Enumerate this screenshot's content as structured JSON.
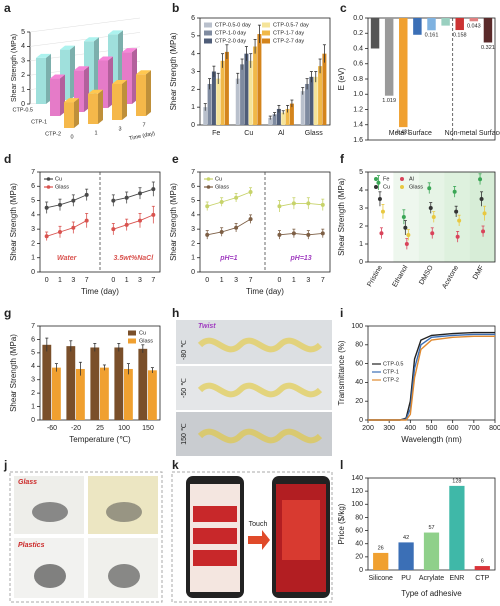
{
  "panel_labels": [
    "a",
    "b",
    "c",
    "d",
    "e",
    "f",
    "g",
    "h",
    "i",
    "j",
    "k",
    "l"
  ],
  "chart_data": [
    {
      "type": "bar3d",
      "ylabel": "Shear Strength (MPa)",
      "xlabel": "Time (day)",
      "categories": [
        "0",
        "1",
        "3",
        "7"
      ],
      "series": [
        {
          "name": "CTP-0.5",
          "color": "#9fe0dc",
          "values": [
            3.2,
            3.5,
            3.8,
            4.0
          ]
        },
        {
          "name": "CTP-1",
          "color": "#e57bc8",
          "values": [
            2.6,
            2.9,
            3.3,
            3.6
          ]
        },
        {
          "name": "CTP-2",
          "color": "#f5b84a",
          "values": [
            1.8,
            2.1,
            2.5,
            2.9
          ]
        }
      ],
      "ylim": [
        0,
        5
      ],
      "yticks": [
        0,
        1,
        2,
        3,
        4,
        5
      ]
    },
    {
      "type": "bar",
      "ylabel": "Shear Strength (MPa)",
      "categories": [
        "Fe",
        "Cu",
        "Al",
        "Glass"
      ],
      "series": [
        {
          "name": "CTP-0.5-0 day",
          "color": "#b9c0cc",
          "values": [
            1.0,
            2.6,
            0.4,
            1.9
          ],
          "errors": [
            0.2,
            0.3,
            0.1,
            0.2
          ]
        },
        {
          "name": "CTP-1-0 day",
          "color": "#7f8ba0",
          "values": [
            2.3,
            3.4,
            0.6,
            2.3
          ],
          "errors": [
            0.3,
            0.3,
            0.1,
            0.3
          ]
        },
        {
          "name": "CTP-2-0 day",
          "color": "#4f5d78",
          "values": [
            3.0,
            4.0,
            0.9,
            2.7
          ],
          "errors": [
            0.3,
            0.4,
            0.2,
            0.3
          ]
        },
        {
          "name": "CTP-0.5-7 day",
          "color": "#f5e49a",
          "values": [
            2.6,
            3.6,
            0.7,
            2.7
          ],
          "errors": [
            0.3,
            0.4,
            0.1,
            0.3
          ]
        },
        {
          "name": "CTP-1-7 day",
          "color": "#f0b848",
          "values": [
            3.6,
            4.4,
            0.9,
            3.3
          ],
          "errors": [
            0.4,
            0.4,
            0.2,
            0.4
          ]
        },
        {
          "name": "CTP-2-7 day",
          "color": "#d4841c",
          "values": [
            4.1,
            5.1,
            1.2,
            4.0
          ],
          "errors": [
            0.4,
            0.5,
            0.2,
            0.5
          ]
        }
      ],
      "ylim": [
        0,
        6
      ],
      "yticks": [
        0,
        1,
        2,
        3,
        4,
        5,
        6
      ],
      "legend": "upper left",
      "legend_columns": 2
    },
    {
      "type": "bar",
      "ylabel": "E (eV)",
      "values": [
        0.4,
        1.019,
        1.431,
        0.22,
        0.161,
        0.1,
        0.158,
        0.043,
        0.321
      ],
      "show_value": [
        false,
        true,
        true,
        false,
        true,
        false,
        true,
        true,
        true
      ],
      "colors": [
        "#555555",
        "#9a9a9a",
        "#f0a030",
        "#3b6fb6",
        "#7fb2e0",
        "#9ad0c0",
        "#cc3333",
        "#e08080",
        "#5a2a2a"
      ],
      "groups": [
        {
          "label": "Metal Surface",
          "size": 6
        },
        {
          "label": "Non-metal Surface",
          "size": 3
        }
      ],
      "ylim": [
        1.6,
        0
      ],
      "yticks": [
        {
          "value": 0,
          "label": "0.0"
        },
        0.2,
        0.4,
        0.6,
        0.8,
        {
          "value": 1,
          "label": "1.0"
        },
        1.2,
        1.4,
        1.6
      ]
    },
    {
      "type": "line",
      "markers": true,
      "xlabel": "Time (day)",
      "ylabel": "Shear Strength (MPa)",
      "categories": [
        "0",
        "1",
        "3",
        "7",
        null,
        "0",
        "1",
        "3",
        "7"
      ],
      "series": [
        {
          "name": "Cu",
          "color": "#4a4a4a",
          "values": [
            4.5,
            4.7,
            5.0,
            5.4,
            null,
            5.0,
            5.2,
            5.5,
            5.8
          ],
          "errors": [
            0.4,
            0.4,
            0.4,
            0.4,
            null,
            0.4,
            0.4,
            0.4,
            0.5
          ]
        },
        {
          "name": "Glass",
          "color": "#d9534f",
          "values": [
            2.5,
            2.8,
            3.1,
            3.6,
            null,
            3.0,
            3.3,
            3.6,
            4.0
          ],
          "errors": [
            0.3,
            0.4,
            0.4,
            0.5,
            null,
            0.4,
            0.4,
            0.5,
            0.6
          ]
        }
      ],
      "ylim": [
        0,
        7
      ],
      "yticks": [
        0,
        1,
        2,
        3,
        4,
        5,
        6,
        7
      ],
      "legend": "upper left",
      "annotations": [
        "Water",
        "3.5wt%NaCl"
      ],
      "annotation_color": "#d9534f"
    },
    {
      "type": "line",
      "markers": true,
      "xlabel": "Time (day)",
      "ylabel": "Shear Strength (MPa)",
      "categories": [
        "0",
        "1",
        "3",
        "7",
        null,
        "0",
        "1",
        "3",
        "7"
      ],
      "series": [
        {
          "name": "Cu",
          "color": "#c7d36a",
          "values": [
            4.6,
            4.9,
            5.2,
            5.6,
            null,
            4.6,
            4.8,
            4.8,
            4.7
          ],
          "errors": [
            0.3,
            0.3,
            0.3,
            0.3,
            null,
            0.4,
            0.4,
            0.4,
            0.4
          ]
        },
        {
          "name": "Glass",
          "color": "#7d5f45",
          "values": [
            2.6,
            2.8,
            3.1,
            3.7,
            null,
            2.6,
            2.7,
            2.6,
            2.7
          ],
          "errors": [
            0.3,
            0.3,
            0.3,
            0.3,
            null,
            0.3,
            0.3,
            0.3,
            0.3
          ]
        }
      ],
      "ylim": [
        0,
        7
      ],
      "yticks": [
        0,
        1,
        2,
        3,
        4,
        5,
        6,
        7
      ],
      "legend": "upper left",
      "annotations": [
        "pH=1",
        "pH=13"
      ],
      "annotation_color": "#a03cc0"
    },
    {
      "type": "scatter",
      "ylabel": "Shear Strength (MPa)",
      "categories": [
        "Pristine",
        "Ethanol",
        "DMSO",
        "Acetone",
        "DMF"
      ],
      "series": [
        {
          "name": "Fe",
          "color": "#3aa655",
          "values": [
            4.4,
            2.5,
            4.1,
            3.9,
            4.6
          ],
          "errors": [
            0.4,
            0.4,
            0.3,
            0.3,
            0.3
          ]
        },
        {
          "name": "Cu",
          "color": "#333333",
          "values": [
            3.5,
            1.9,
            3.0,
            2.8,
            3.5
          ],
          "errors": [
            0.4,
            0.4,
            0.3,
            0.3,
            0.4
          ]
        },
        {
          "name": "Al",
          "color": "#d9435a",
          "values": [
            1.6,
            1.0,
            1.6,
            1.4,
            1.7
          ],
          "errors": [
            0.3,
            0.3,
            0.3,
            0.3,
            0.3
          ]
        },
        {
          "name": "Glass",
          "color": "#e8c840",
          "values": [
            2.8,
            1.5,
            2.5,
            2.3,
            2.7
          ],
          "errors": [
            0.4,
            0.3,
            0.3,
            0.3,
            0.4
          ]
        }
      ],
      "ylim": [
        0,
        5
      ],
      "yticks": [
        0,
        1,
        2,
        3,
        4,
        5
      ],
      "legend": "upper left",
      "legend_columns": 2
    },
    {
      "type": "bar",
      "xlabel": "Temperature (℃)",
      "ylabel": "Shear Strength (MPa)",
      "categories": [
        "-60",
        "-20",
        "25",
        "100",
        "150"
      ],
      "series": [
        {
          "name": "Cu",
          "color": "#7a4f2a",
          "values": [
            5.6,
            5.5,
            5.4,
            5.4,
            5.3
          ],
          "errors": [
            0.5,
            0.4,
            0.3,
            0.3,
            0.3
          ]
        },
        {
          "name": "Glass",
          "color": "#f0a030",
          "values": [
            3.9,
            3.8,
            3.9,
            3.8,
            3.7
          ],
          "errors": [
            0.3,
            0.5,
            0.2,
            0.4,
            0.2
          ]
        }
      ],
      "ylim": [
        0,
        7
      ],
      "yticks": [
        0,
        1,
        2,
        3,
        4,
        5,
        6,
        7
      ],
      "legend": "upper right"
    },
    {
      "type": "line",
      "xlabel": "Wavelength (nm)",
      "ylabel": "Transmittance (%)",
      "x": [
        200,
        300,
        350,
        380,
        400,
        420,
        450,
        500,
        600,
        700,
        800
      ],
      "series": [
        {
          "name": "CTP-0.5",
          "color": "#222222",
          "values": [
            0,
            0,
            0,
            2,
            20,
            65,
            85,
            90,
            92,
            93,
            93
          ]
        },
        {
          "name": "CTP-1",
          "color": "#3b6fb6",
          "values": [
            0,
            0,
            0,
            1,
            12,
            55,
            80,
            88,
            90,
            91,
            91
          ]
        },
        {
          "name": "CTP-2",
          "color": "#e08a30",
          "values": [
            0,
            0,
            0,
            0,
            6,
            45,
            75,
            85,
            88,
            89,
            89
          ]
        }
      ],
      "xlim": [
        200,
        800
      ],
      "xticks": [
        200,
        300,
        400,
        500,
        600,
        700,
        800
      ],
      "ylim": [
        0,
        100
      ],
      "yticks": [
        0,
        20,
        40,
        60,
        80,
        100
      ],
      "legend": "center left"
    },
    {
      "type": "bar",
      "xlabel": "Type of adhesive",
      "ylabel": "Price ($/kg)",
      "categories": [
        "Silicone",
        "PU",
        "Acrylate",
        "ENR",
        "CTP"
      ],
      "values": [
        26,
        42,
        57,
        128,
        6
      ],
      "colors": [
        "#f0a030",
        "#3b6fb6",
        "#8fd08a",
        "#3fb8a8",
        "#d9343a"
      ],
      "data_labels": true,
      "ylim": [
        0,
        140
      ],
      "yticks": [
        0,
        20,
        40,
        60,
        80,
        100,
        120,
        140
      ]
    }
  ],
  "photos": {
    "h": {
      "title": "Twist",
      "labels": [
        "-80 ℃",
        "-50 ℃",
        "150 ℃"
      ]
    },
    "j": {
      "labels": [
        "Glass",
        "Plastics"
      ]
    },
    "k": {
      "label": "Touch"
    }
  }
}
